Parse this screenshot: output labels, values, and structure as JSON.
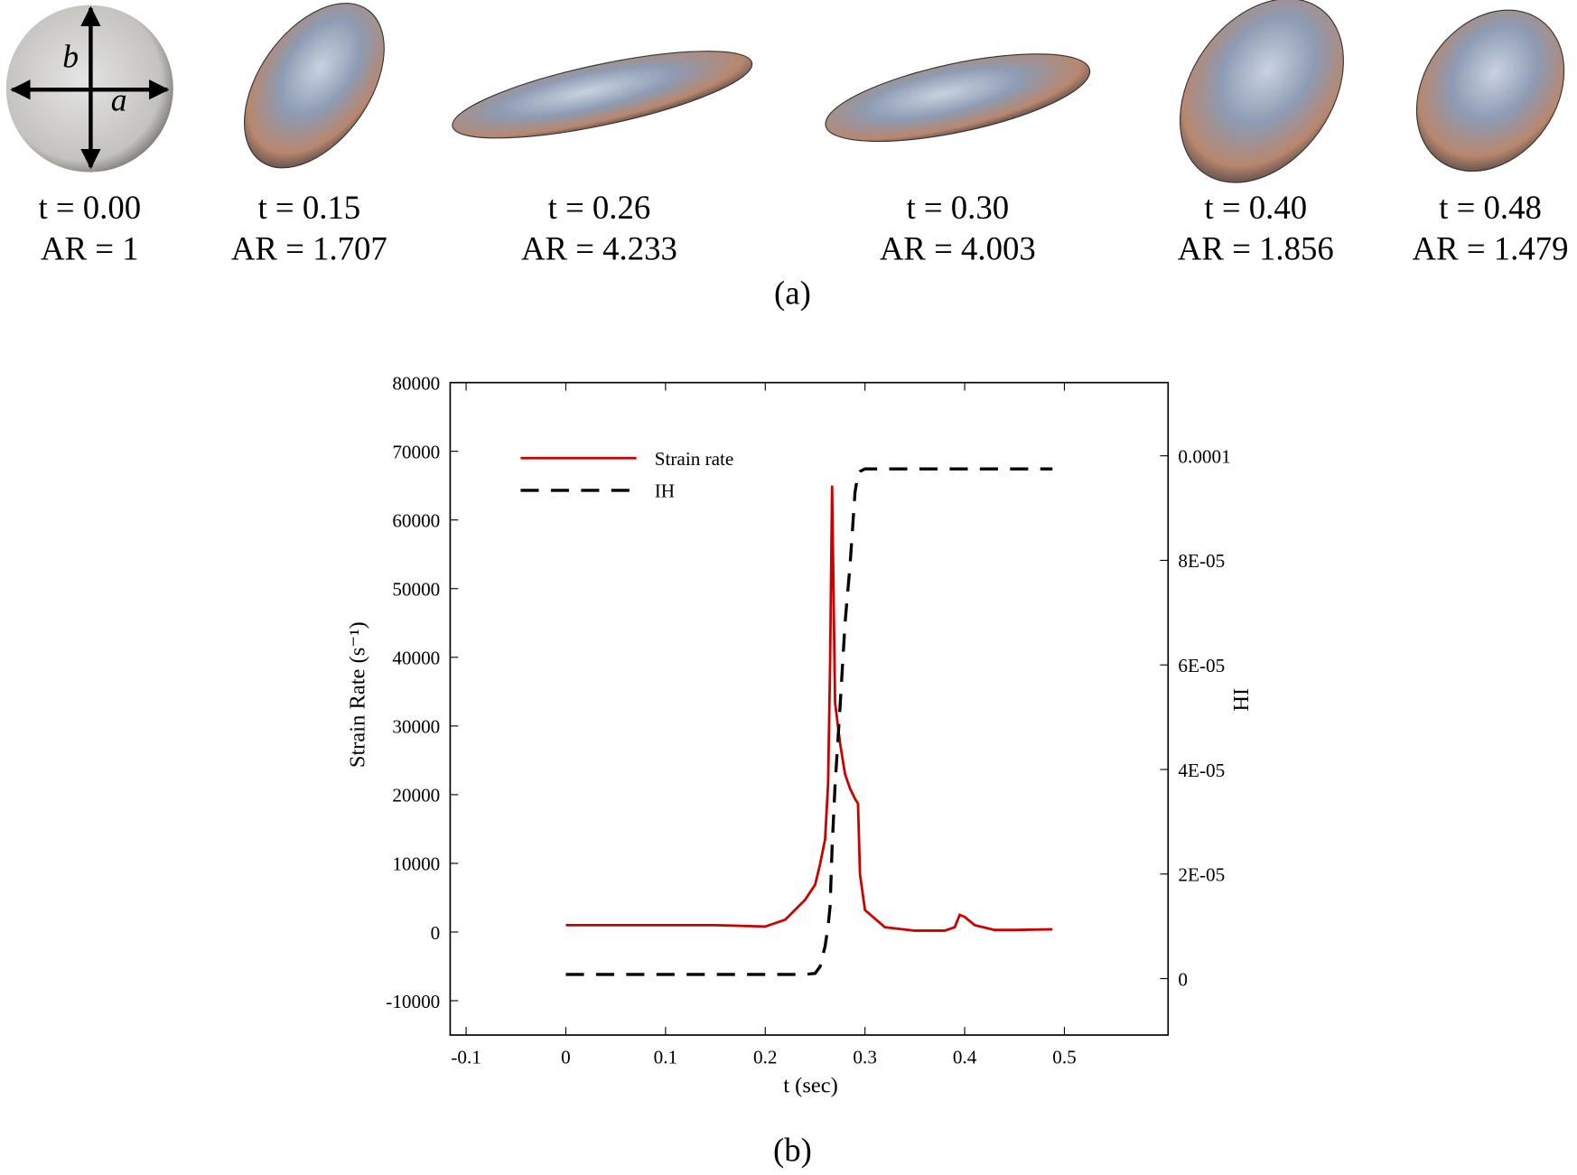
{
  "panel_a": {
    "cells": [
      {
        "t": "t = 0.00",
        "AR": "AR = 1"
      },
      {
        "t": "t = 0.15",
        "AR": "AR = 1.707"
      },
      {
        "t": "t = 0.26",
        "AR": "AR = 4.233"
      },
      {
        "t": "t = 0.30",
        "AR": "AR = 4.003"
      },
      {
        "t": "t = 0.40",
        "AR": "AR = 1.856"
      },
      {
        "t": "t = 0.48",
        "AR": "AR = 1.479"
      }
    ],
    "axis_labels": [
      "b",
      "a"
    ],
    "caption": "(a)"
  },
  "panel_b_caption": "(b)",
  "chart_data": {
    "type": "line",
    "xlabel": "t (sec)",
    "ylabel": "Strain Rate (s⁻¹)",
    "y2label": "IH",
    "x": [
      0,
      0.05,
      0.1,
      0.15,
      0.2,
      0.22,
      0.24,
      0.25,
      0.255,
      0.26,
      0.263,
      0.265,
      0.267,
      0.27,
      0.275,
      0.28,
      0.285,
      0.29,
      0.293,
      0.295,
      0.3,
      0.32,
      0.35,
      0.38,
      0.39,
      0.395,
      0.4,
      0.41,
      0.43,
      0.45,
      0.488
    ],
    "series": [
      {
        "name": "Strain rate",
        "color": "#cc0000",
        "dash": false,
        "values": [
          1000,
          1000,
          1000,
          1000,
          800,
          1800,
          4700,
          6900,
          9900,
          13500,
          21600,
          39000,
          65000,
          33400,
          27500,
          23000,
          20900,
          19400,
          18700,
          8400,
          3200,
          700,
          200,
          200,
          700,
          2500,
          2200,
          1000,
          300,
          300,
          400
        ]
      },
      {
        "name": "IH",
        "color": "#000000",
        "dash": true,
        "axis": "y2",
        "values": [
          8e-07,
          8e-07,
          8e-07,
          8e-07,
          8e-07,
          8e-07,
          8e-07,
          1e-06,
          2.3e-06,
          6.2e-06,
          1e-05,
          1.38e-05,
          2.5e-05,
          3.7e-05,
          5.2e-05,
          6.8e-05,
          7.9e-05,
          9.3e-05,
          9.65e-05,
          9.7e-05,
          9.75e-05,
          9.75e-05,
          9.75e-05,
          9.75e-05,
          9.75e-05,
          9.75e-05,
          9.75e-05,
          9.75e-05,
          9.75e-05,
          9.75e-05,
          9.75e-05
        ]
      }
    ],
    "xlim": [
      -0.116,
      0.604
    ],
    "xticks": [
      -0.1,
      0,
      0.1,
      0.2,
      0.3,
      0.4,
      0.5
    ],
    "ylim": [
      -15000,
      80000
    ],
    "yticks": [
      -10000,
      0,
      10000,
      20000,
      30000,
      40000,
      50000,
      60000,
      70000,
      80000
    ],
    "y2lim": [
      -1.08e-05,
      0.000114
    ],
    "y2ticks": [
      0,
      {
        "value": 2e-05,
        "label": "2E-05"
      },
      {
        "value": 4e-05,
        "label": "4E-05"
      },
      {
        "value": 6e-05,
        "label": "6E-05"
      },
      {
        "value": 8e-05,
        "label": "8E-05"
      },
      0.0001
    ],
    "legend": "upper left",
    "grid": false
  }
}
